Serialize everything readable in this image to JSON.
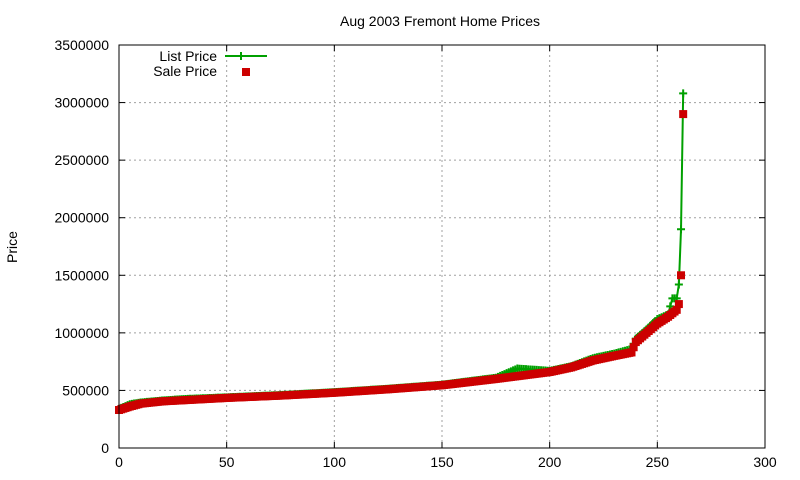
{
  "chart_data": {
    "type": "scatter",
    "title": "Aug 2003 Fremont Home Prices",
    "xlabel": "",
    "ylabel": "Price",
    "xlim": [
      0,
      300
    ],
    "ylim": [
      0,
      3500000
    ],
    "xticks": [
      0,
      50,
      100,
      150,
      200,
      250,
      300
    ],
    "yticks": [
      0,
      500000,
      1000000,
      1500000,
      2000000,
      2500000,
      3000000,
      3500000
    ],
    "grid": true,
    "legend_position": "top-left",
    "series": [
      {
        "name": "List Price",
        "style": "linespoints",
        "marker": "+",
        "color": "#00a000",
        "x": [
          0,
          5,
          10,
          20,
          30,
          50,
          75,
          100,
          125,
          150,
          175,
          185,
          200,
          210,
          220,
          230,
          238,
          240,
          245,
          250,
          255,
          257,
          259,
          260,
          261,
          262
        ],
        "values": [
          340000,
          380000,
          395000,
          412000,
          425000,
          440000,
          460000,
          485000,
          515000,
          550000,
          610000,
          690000,
          670000,
          710000,
          780000,
          820000,
          860000,
          950000,
          1030000,
          1120000,
          1160000,
          1300000,
          1300000,
          1420000,
          1900000,
          3080000
        ]
      },
      {
        "name": "Sale Price",
        "style": "points",
        "marker": "square",
        "color": "#cc0000",
        "x": [
          0,
          5,
          10,
          20,
          30,
          50,
          75,
          100,
          125,
          150,
          175,
          200,
          210,
          220,
          230,
          238,
          240,
          245,
          250,
          255,
          259,
          260,
          261,
          262
        ],
        "values": [
          330000,
          360000,
          385000,
          405000,
          415000,
          435000,
          455000,
          480000,
          510000,
          545000,
          600000,
          660000,
          700000,
          760000,
          800000,
          830000,
          920000,
          1000000,
          1080000,
          1140000,
          1200000,
          1250000,
          1500000,
          2900000
        ]
      }
    ]
  }
}
